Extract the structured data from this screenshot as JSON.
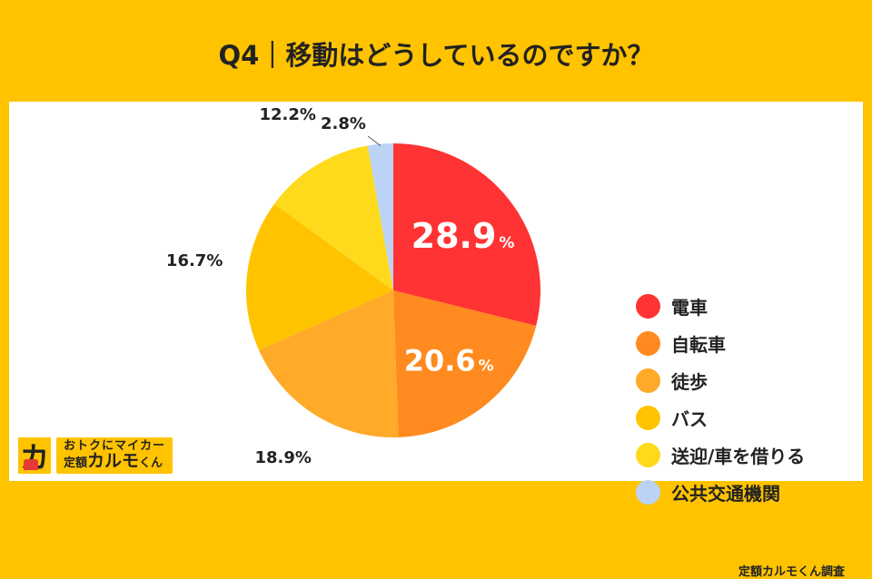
{
  "title": "Q4｜移動はどうしているのですか？",
  "credit": "定額カルモくん調査",
  "logo": {
    "mark": "カ",
    "line1": "おトクにマイカー",
    "line2_prefix": "定額",
    "line2_big": "カルモ",
    "line2_suffix": "くん"
  },
  "chart_data": {
    "type": "pie",
    "title": "Q4｜移動はどうしているのですか？",
    "unit": "%",
    "start": "12 o'clock",
    "direction": "clockwise",
    "legend_position": "right",
    "slices": [
      {
        "label": "電車",
        "value": 28.9,
        "display": "28.9",
        "color": "#FF3333",
        "label_style": "inside"
      },
      {
        "label": "自転車",
        "value": 20.6,
        "display": "20.6",
        "color": "#FF8A1F",
        "label_style": "inside"
      },
      {
        "label": "徒歩",
        "value": 18.9,
        "display": "18.9%",
        "color": "#FFAA28",
        "label_style": "outside"
      },
      {
        "label": "バス",
        "value": 16.7,
        "display": "16.7%",
        "color": "#FFC300",
        "label_style": "outside"
      },
      {
        "label": "送迎/車を借りる",
        "value": 12.2,
        "display": "12.2%",
        "color": "#FFDA1C",
        "label_style": "outside"
      },
      {
        "label": "公共交通機関",
        "value": 2.8,
        "display": "2.8%",
        "color": "#BCD3F5",
        "label_style": "outside"
      }
    ]
  }
}
